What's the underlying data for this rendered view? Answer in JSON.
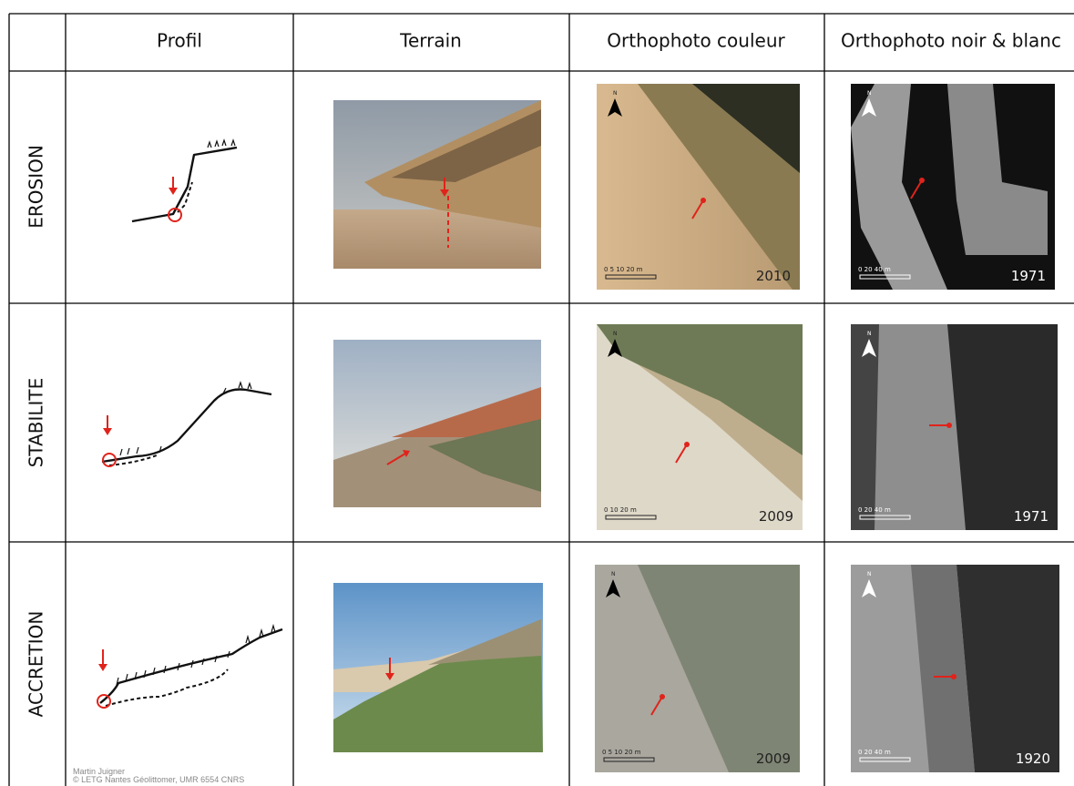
{
  "header": {
    "columns": [
      "Profil",
      "Terrain",
      "Orthophoto couleur",
      "Orthophoto noir & blanc"
    ]
  },
  "rows": [
    {
      "label": "EROSION",
      "color_year": "2010",
      "color_scale": "0 5 10 20 m",
      "bw_year": "1971",
      "bw_scale": "0 20 40 m"
    },
    {
      "label": "STABILITE",
      "color_year": "2009",
      "color_scale": "0 10 20 m",
      "bw_year": "1971",
      "bw_scale": "0 20 40 m"
    },
    {
      "label": "ACCRETION",
      "color_year": "2009",
      "color_scale": "0 5 10 20 m",
      "bw_year": "1920",
      "bw_scale": "0 20 40 m"
    }
  ],
  "north": "N",
  "credit": {
    "author": "Martin Juigner",
    "affiliation": "© LETG Nantes Géolittomer, UMR 6554 CNRS"
  }
}
